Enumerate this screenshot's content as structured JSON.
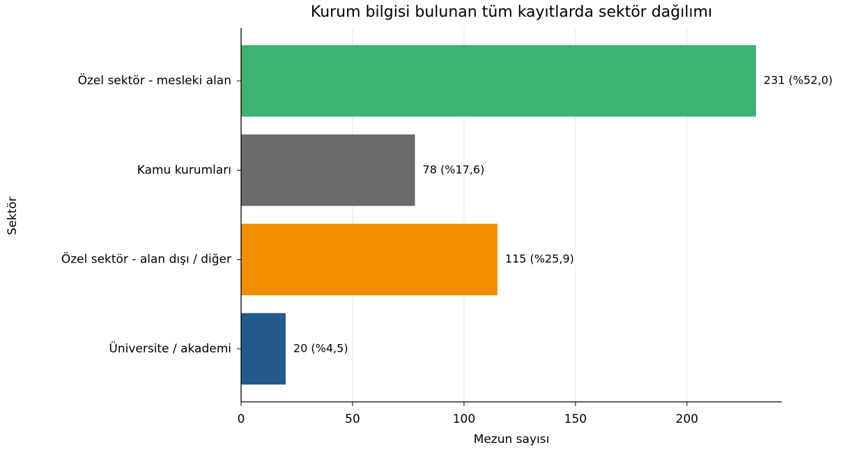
{
  "chart_data": {
    "type": "barh",
    "title": "Kurum bilgisi bulunan tüm kayıtlarda sektör dağılımı",
    "xlabel": "Mezun sayısı",
    "ylabel": "Sektör",
    "categories": [
      "Özel sektör - mesleki alan",
      "Kamu kurumları",
      "Özel sektör - alan dışı / diğer",
      "Üniversite / akademi"
    ],
    "values": [
      231,
      78,
      115,
      20
    ],
    "value_labels": [
      "231 (%52,0)",
      "78 (%17,6)",
      "115 (%25,9)",
      "20 (%4,5)"
    ],
    "colors": [
      "#3cb371",
      "#6b6b6b",
      "#f28e00",
      "#245a8a"
    ],
    "xlim": [
      0,
      242.55
    ],
    "xticks": [
      0,
      50,
      100,
      150,
      200
    ],
    "grid": true
  }
}
